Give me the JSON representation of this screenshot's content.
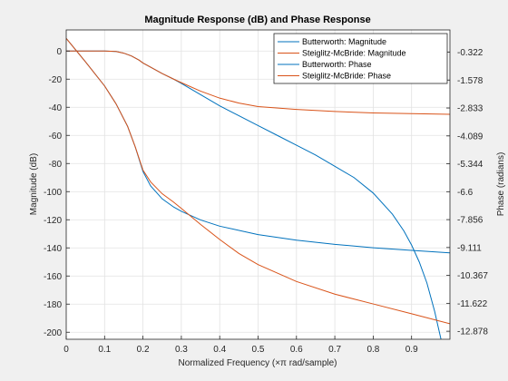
{
  "chart_data": {
    "type": "line",
    "title": "Magnitude Response (dB) and Phase Response",
    "xlabel": "Normalized Frequency (×π rad/sample)",
    "ylabel_left": "Magnitude (dB)",
    "ylabel_right": "Phase (radians)",
    "xlim": [
      0,
      1
    ],
    "ylim_left": [
      -205,
      15
    ],
    "ylim_right": [
      -13.24,
      0.68
    ],
    "grid": true,
    "legend_position": "top-right",
    "x_ticks": [
      "0",
      "0.1",
      "0.2",
      "0.3",
      "0.4",
      "0.5",
      "0.6",
      "0.7",
      "0.8",
      "0.9"
    ],
    "y_ticks_left": [
      "0",
      "-20",
      "-40",
      "-60",
      "-80",
      "-100",
      "-120",
      "-140",
      "-160",
      "-180",
      "-200"
    ],
    "y_ticks_right": [
      "-0.322",
      "-1.578",
      "-2.833",
      "-4.089",
      "-5.344",
      "-6.6",
      "-7.856",
      "-9.111",
      "-10.367",
      "-11.622",
      "-12.878"
    ],
    "series": [
      {
        "name": "Butterworth: Magnitude",
        "axis": "left",
        "color": "#0072bd",
        "x": [
          0,
          0.05,
          0.1,
          0.13,
          0.15,
          0.17,
          0.19,
          0.2,
          0.22,
          0.25,
          0.28,
          0.3,
          0.35,
          0.4,
          0.45,
          0.5,
          0.55,
          0.6,
          0.65,
          0.7,
          0.75,
          0.8,
          0.85,
          0.88,
          0.9,
          0.92,
          0.94,
          0.96,
          0.97,
          0.98
        ],
        "y": [
          0,
          0,
          0,
          -0.3,
          -1.5,
          -3.5,
          -6.5,
          -8.5,
          -11.5,
          -16,
          -20,
          -23,
          -31,
          -39,
          -46,
          -53,
          -60,
          -67,
          -74,
          -82,
          -90,
          -101,
          -116,
          -128,
          -138,
          -150,
          -165,
          -185,
          -197,
          -209
        ]
      },
      {
        "name": "Steiglitz-McBride: Magnitude",
        "axis": "left",
        "color": "#d95319",
        "x": [
          0,
          0.05,
          0.1,
          0.13,
          0.15,
          0.17,
          0.19,
          0.2,
          0.22,
          0.25,
          0.28,
          0.3,
          0.35,
          0.4,
          0.45,
          0.5,
          0.6,
          0.7,
          0.8,
          0.9,
          1.0
        ],
        "y": [
          0,
          0,
          0,
          -0.3,
          -1.5,
          -3.5,
          -6.5,
          -8.5,
          -11.5,
          -16,
          -20,
          -22.5,
          -28.5,
          -33.5,
          -37,
          -39.5,
          -41.5,
          -43,
          -44,
          -44.5,
          -45
        ]
      },
      {
        "name": "Butterworth: Phase",
        "axis": "right",
        "color": "#0072bd",
        "x": [
          0,
          0.05,
          0.1,
          0.13,
          0.16,
          0.18,
          0.2,
          0.22,
          0.25,
          0.28,
          0.3,
          0.35,
          0.4,
          0.5,
          0.6,
          0.7,
          0.8,
          0.9,
          1.0
        ],
        "y": [
          0.3,
          -0.75,
          -1.84,
          -2.65,
          -3.66,
          -4.59,
          -5.69,
          -6.34,
          -6.92,
          -7.29,
          -7.48,
          -7.87,
          -8.15,
          -8.53,
          -8.78,
          -8.97,
          -9.12,
          -9.24,
          -9.35
        ]
      },
      {
        "name": "Steiglitz-McBride: Phase",
        "axis": "right",
        "color": "#d95319",
        "x": [
          0,
          0.05,
          0.1,
          0.13,
          0.16,
          0.18,
          0.2,
          0.22,
          0.25,
          0.28,
          0.3,
          0.35,
          0.4,
          0.45,
          0.5,
          0.6,
          0.7,
          0.8,
          0.9,
          1.0
        ],
        "y": [
          0.3,
          -0.75,
          -1.84,
          -2.65,
          -3.66,
          -4.59,
          -5.63,
          -6.16,
          -6.69,
          -7.07,
          -7.35,
          -8.07,
          -8.75,
          -9.38,
          -9.88,
          -10.64,
          -11.21,
          -11.65,
          -12.09,
          -12.54
        ]
      }
    ]
  }
}
